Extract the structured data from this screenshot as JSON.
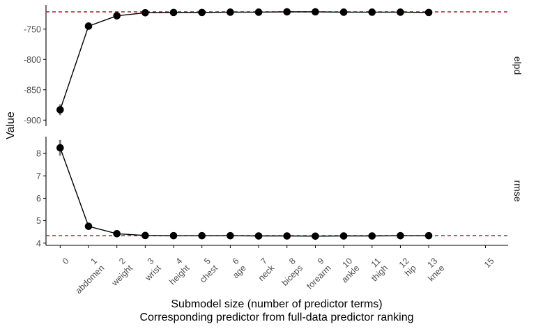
{
  "chart_data": {
    "type": "line",
    "ylabel": "Value",
    "xlabel_line1": "Submodel size (number of predictor terms)",
    "xlabel_line2": "Corresponding predictor from full-data predictor ranking",
    "x_ticks": [
      {
        "size": "0",
        "predictor": ""
      },
      {
        "size": "1",
        "predictor": "abdomen"
      },
      {
        "size": "2",
        "predictor": "weight"
      },
      {
        "size": "3",
        "predictor": "wrist"
      },
      {
        "size": "4",
        "predictor": "height"
      },
      {
        "size": "5",
        "predictor": "chest"
      },
      {
        "size": "6",
        "predictor": "age"
      },
      {
        "size": "7",
        "predictor": "neck"
      },
      {
        "size": "8",
        "predictor": "biceps"
      },
      {
        "size": "9",
        "predictor": "forearm"
      },
      {
        "size": "10",
        "predictor": "ankle"
      },
      {
        "size": "11",
        "predictor": "thigh"
      },
      {
        "size": "12",
        "predictor": "hip"
      },
      {
        "size": "13",
        "predictor": "knee"
      },
      {
        "size": "15",
        "predictor": ""
      }
    ],
    "xlim": [
      -0.5,
      15.8
    ],
    "panels": [
      {
        "strip": "elpd",
        "ylim": [
          -910,
          -710
        ],
        "yticks": [
          -750,
          -800,
          -850,
          -900
        ],
        "ytick_labels": [
          "-750",
          "-800",
          "-850",
          "-900"
        ],
        "reference": -721.5,
        "x": [
          0,
          1,
          2,
          3,
          4,
          5,
          6,
          7,
          8,
          9,
          10,
          11,
          12,
          13
        ],
        "y": [
          -883,
          -745,
          -728,
          -723,
          -722.5,
          -722.5,
          -722,
          -722,
          -721.5,
          -721.5,
          -722,
          -722,
          -722,
          -722.5
        ],
        "se": [
          9,
          5,
          3.5,
          3,
          3,
          3,
          3,
          3,
          3,
          3,
          3,
          3,
          3,
          3
        ]
      },
      {
        "strip": "rmse",
        "ylim": [
          3.9,
          8.75
        ],
        "yticks": [
          8,
          7,
          6,
          5,
          4
        ],
        "ytick_labels": [
          "8",
          "7",
          "6",
          "5",
          "4"
        ],
        "reference": 4.33,
        "x": [
          0,
          1,
          2,
          3,
          4,
          5,
          6,
          7,
          8,
          9,
          10,
          11,
          12,
          13
        ],
        "y": [
          8.25,
          4.75,
          4.42,
          4.34,
          4.33,
          4.33,
          4.33,
          4.32,
          4.32,
          4.31,
          4.32,
          4.32,
          4.33,
          4.33
        ],
        "se": [
          0.35,
          0.1,
          0.06,
          0.04,
          0.04,
          0.04,
          0.04,
          0.04,
          0.04,
          0.04,
          0.04,
          0.04,
          0.04,
          0.04
        ]
      }
    ],
    "colors": {
      "line": "#000000",
      "point": "#000000",
      "errorbar": "#7f7f7f",
      "reference": "#b2182b",
      "axis": "#000000",
      "tick_text": "#4d4d4d"
    },
    "grid": false,
    "legend": "none"
  }
}
